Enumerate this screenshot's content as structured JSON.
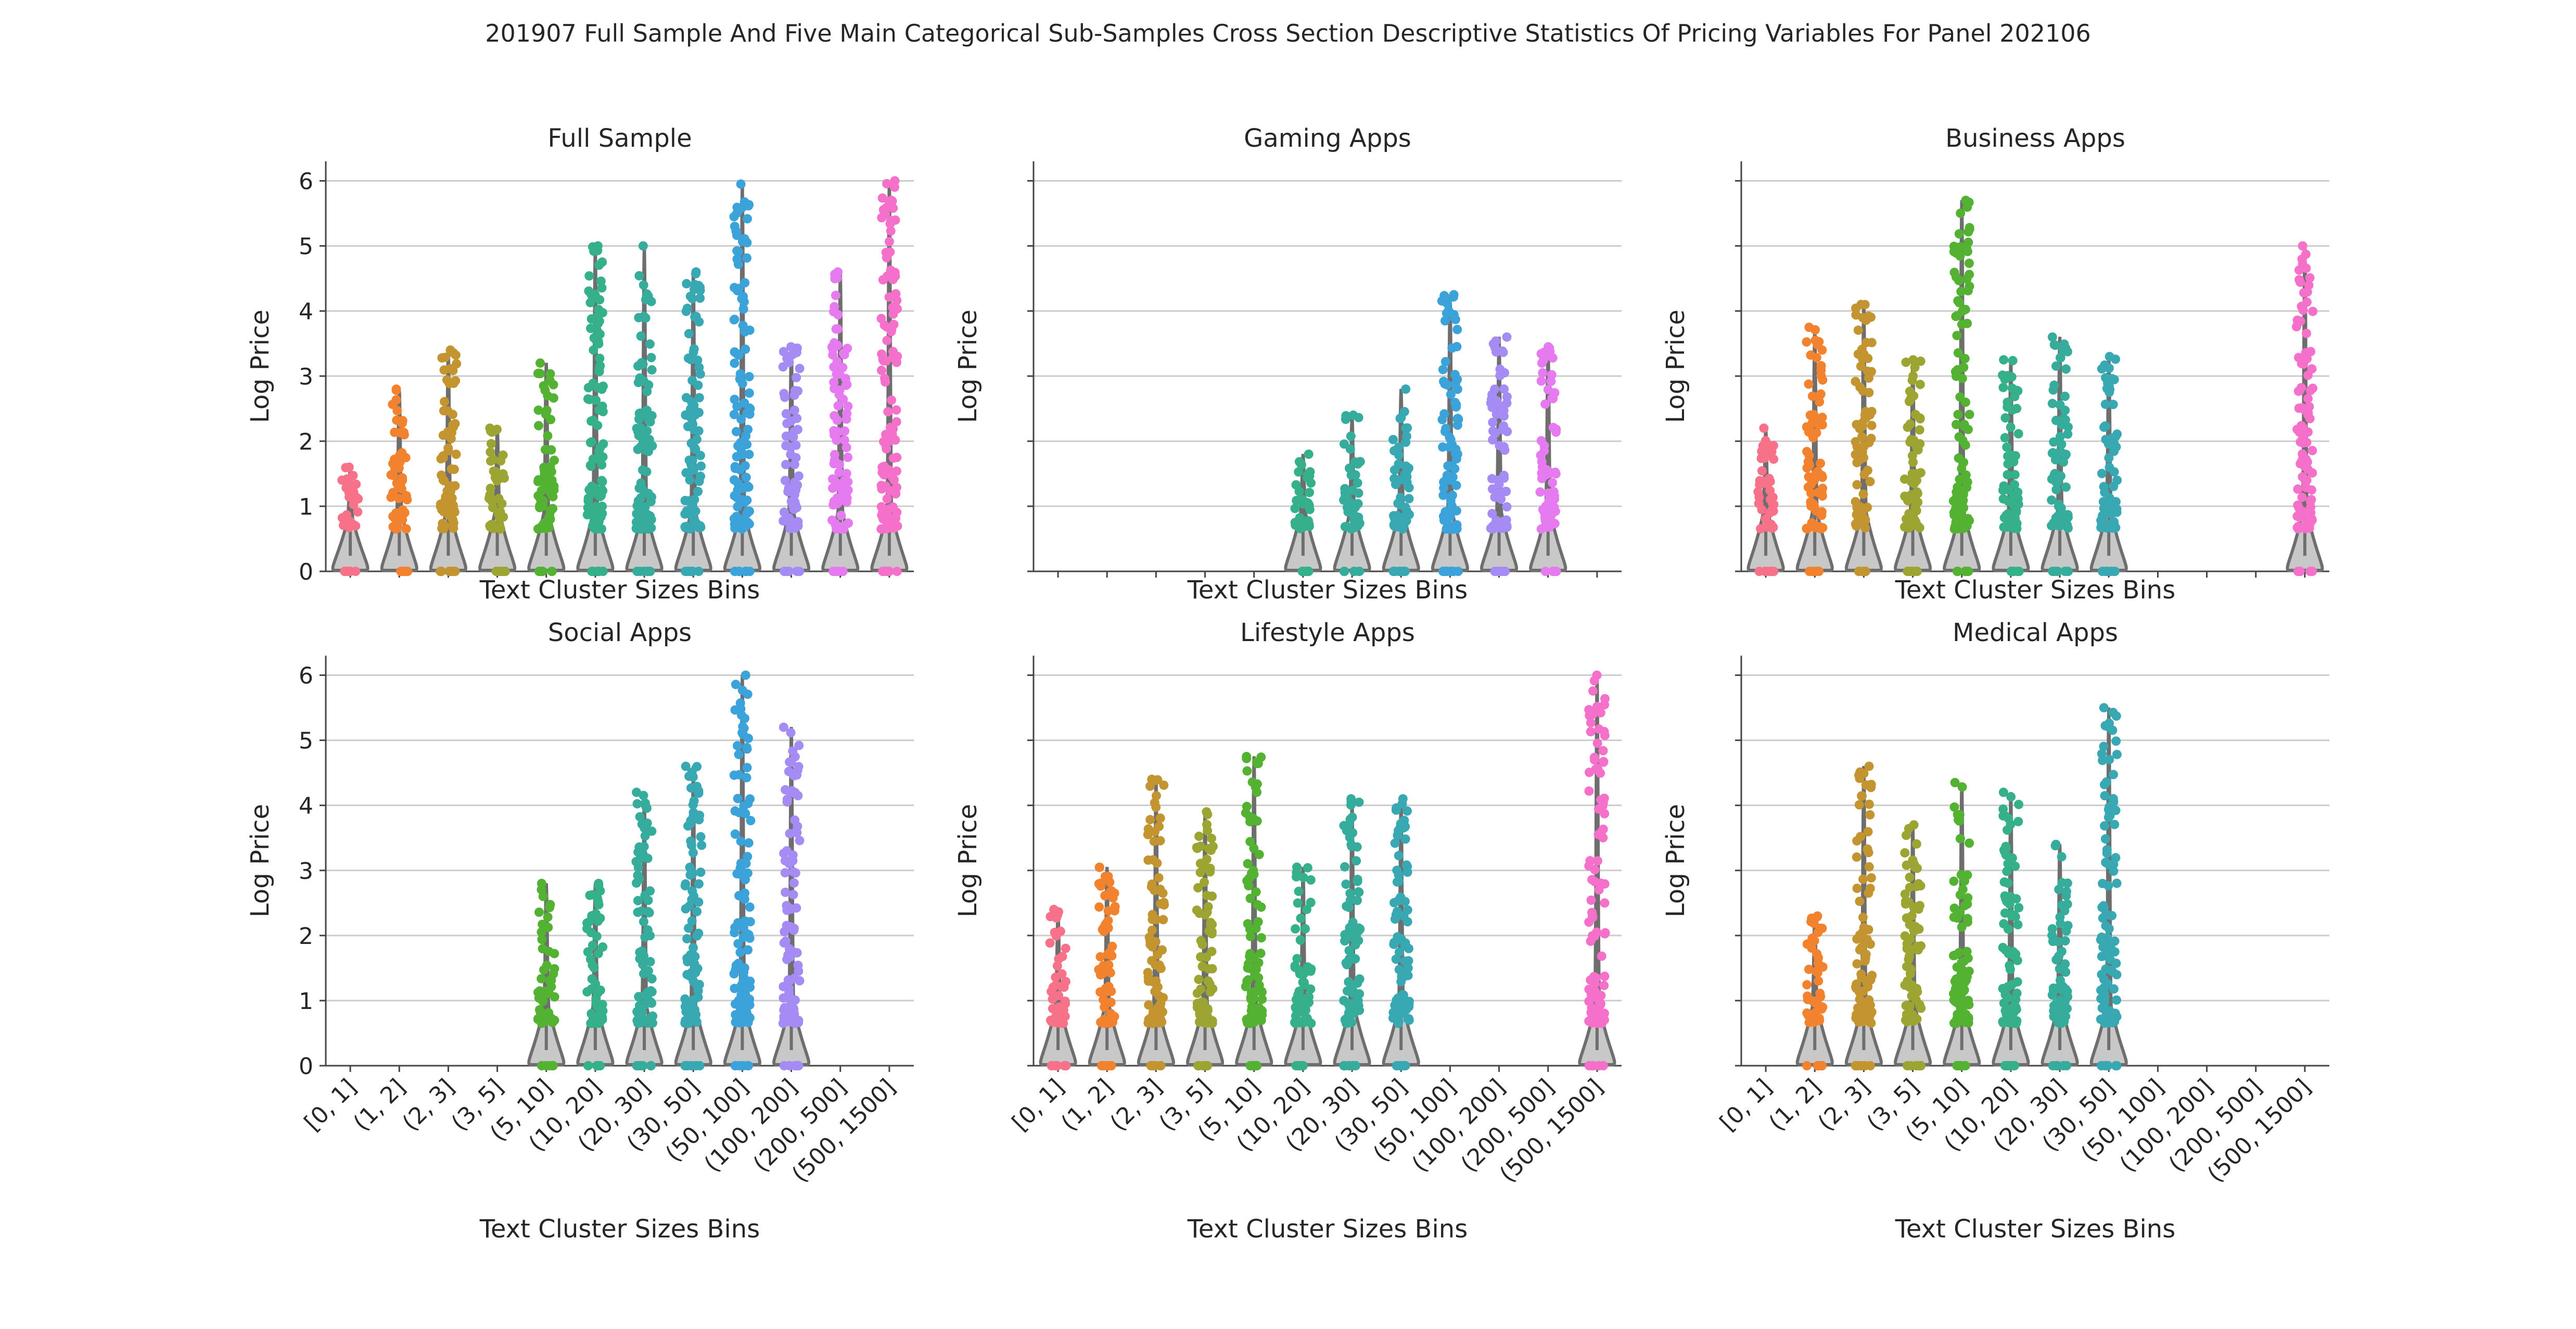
{
  "title": "201907 Full Sample And Five Main Categorical Sub-Samples Cross Section Descriptive Statistics Of Pricing Variables For Panel 202106",
  "chart_data": {
    "type": "violin-strip",
    "bins": [
      "[0, 1]",
      "(1, 2]",
      "(2, 3]",
      "(3, 5]",
      "(5, 10]",
      "(10, 20]",
      "(20, 30]",
      "(30, 50]",
      "(50, 100]",
      "(100, 200]",
      "(200, 500]",
      "(500, 1500]"
    ],
    "bin_colors": [
      "#f77189",
      "#f2822e",
      "#c39531",
      "#9ca532",
      "#54b233",
      "#34b18a",
      "#36ac9d",
      "#38a8b3",
      "#3ba3d9",
      "#a48cf4",
      "#e57bee",
      "#f570c8"
    ],
    "xlabel": "Text Cluster Sizes Bins",
    "ylabel": "Log Price",
    "ylim": [
      0,
      6.3
    ],
    "yticks": [
      0,
      1,
      2,
      3,
      4,
      5,
      6
    ],
    "grid": true,
    "panels": [
      {
        "name": "Full Sample",
        "max": [
          1.6,
          2.8,
          3.4,
          2.2,
          3.2,
          5.0,
          5.0,
          4.6,
          5.95,
          3.45,
          4.6,
          6.0
        ]
      },
      {
        "name": "Gaming Apps",
        "max": [
          null,
          null,
          null,
          null,
          null,
          1.8,
          2.4,
          2.8,
          4.25,
          3.6,
          3.45,
          null
        ]
      },
      {
        "name": "Business Apps",
        "max": [
          2.2,
          3.75,
          4.1,
          3.25,
          5.7,
          3.25,
          3.6,
          3.3,
          null,
          null,
          null,
          5.0
        ]
      },
      {
        "name": "Social Apps",
        "max": [
          null,
          null,
          null,
          null,
          2.8,
          2.8,
          4.2,
          4.6,
          6.0,
          5.2,
          null,
          null
        ]
      },
      {
        "name": "Lifestyle Apps",
        "max": [
          2.4,
          3.05,
          4.4,
          3.9,
          4.75,
          3.05,
          4.1,
          4.1,
          null,
          null,
          null,
          6.0
        ]
      },
      {
        "name": "Medical Apps",
        "max": [
          null,
          2.3,
          4.6,
          3.7,
          4.35,
          4.2,
          3.4,
          5.5,
          null,
          null,
          null,
          null
        ]
      }
    ]
  }
}
